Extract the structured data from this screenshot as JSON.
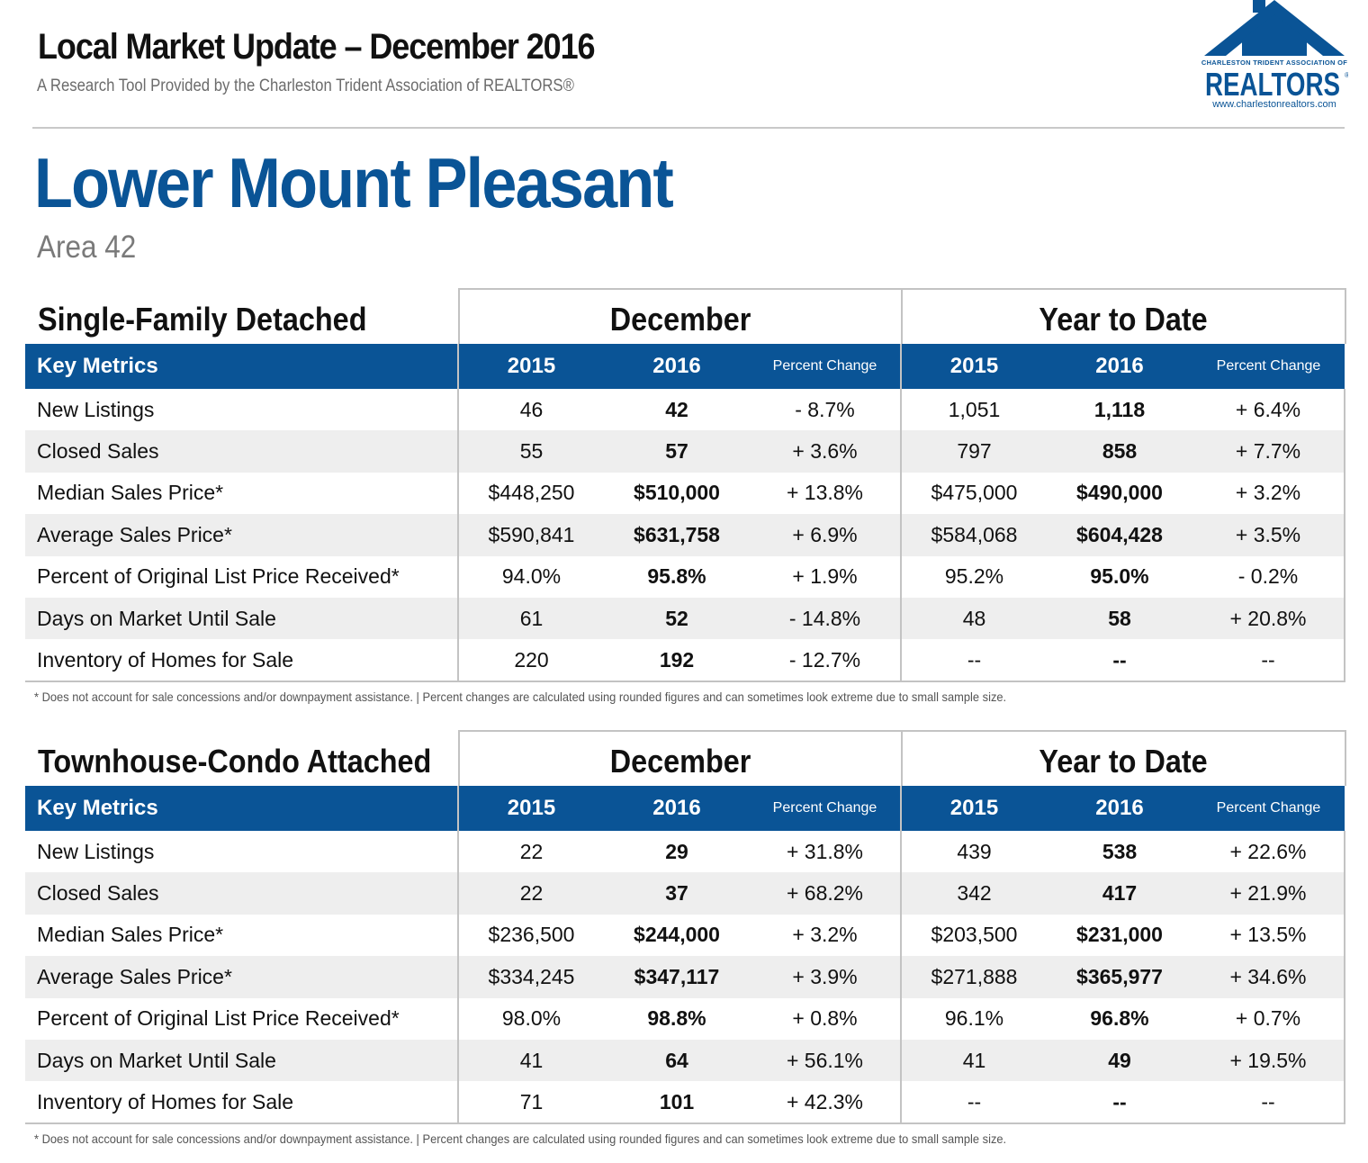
{
  "header": {
    "title": "Local Market Update – December 2016",
    "subtitle": "A Research Tool Provided by the Charleston Trident Association of REALTORS®"
  },
  "logo": {
    "top_text": "CHARLESTON TRIDENT ASSOCIATION OF",
    "word": "REALTORS",
    "reg": "®",
    "url": "www.charlestonrealtors.com",
    "color": "#0a5496"
  },
  "area": {
    "name": "Lower Mount Pleasant",
    "code": "Area 42"
  },
  "columns": {
    "key_metrics": "Key Metrics",
    "group1": "December",
    "group2": "Year to Date",
    "y1": "2015",
    "y2": "2016",
    "pct": "Percent Change"
  },
  "footnote": "* Does not account for sale concessions and/or downpayment assistance.  |  Percent changes are calculated using rounded figures and can sometimes look extreme due to small sample size.",
  "sections": [
    {
      "title": "Single-Family Detached",
      "rows": [
        {
          "metric": "New Listings",
          "m2015": "46",
          "m2016": "42",
          "mpct": "- 8.7%",
          "y2015": "1,051",
          "y2016": "1,118",
          "ypct": "+ 6.4%"
        },
        {
          "metric": "Closed Sales",
          "m2015": "55",
          "m2016": "57",
          "mpct": "+ 3.6%",
          "y2015": "797",
          "y2016": "858",
          "ypct": "+ 7.7%"
        },
        {
          "metric": "Median Sales Price*",
          "m2015": "$448,250",
          "m2016": "$510,000",
          "mpct": "+ 13.8%",
          "y2015": "$475,000",
          "y2016": "$490,000",
          "ypct": "+ 3.2%"
        },
        {
          "metric": "Average Sales Price*",
          "m2015": "$590,841",
          "m2016": "$631,758",
          "mpct": "+ 6.9%",
          "y2015": "$584,068",
          "y2016": "$604,428",
          "ypct": "+ 3.5%"
        },
        {
          "metric": "Percent of Original List Price Received*",
          "m2015": "94.0%",
          "m2016": "95.8%",
          "mpct": "+ 1.9%",
          "y2015": "95.2%",
          "y2016": "95.0%",
          "ypct": "- 0.2%"
        },
        {
          "metric": "Days on Market Until Sale",
          "m2015": "61",
          "m2016": "52",
          "mpct": "- 14.8%",
          "y2015": "48",
          "y2016": "58",
          "ypct": "+ 20.8%"
        },
        {
          "metric": "Inventory of Homes for Sale",
          "m2015": "220",
          "m2016": "192",
          "mpct": "- 12.7%",
          "y2015": "--",
          "y2016": "--",
          "ypct": "--"
        }
      ]
    },
    {
      "title": "Townhouse-Condo Attached",
      "rows": [
        {
          "metric": "New Listings",
          "m2015": "22",
          "m2016": "29",
          "mpct": "+ 31.8%",
          "y2015": "439",
          "y2016": "538",
          "ypct": "+ 22.6%"
        },
        {
          "metric": "Closed Sales",
          "m2015": "22",
          "m2016": "37",
          "mpct": "+ 68.2%",
          "y2015": "342",
          "y2016": "417",
          "ypct": "+ 21.9%"
        },
        {
          "metric": "Median Sales Price*",
          "m2015": "$236,500",
          "m2016": "$244,000",
          "mpct": "+ 3.2%",
          "y2015": "$203,500",
          "y2016": "$231,000",
          "ypct": "+ 13.5%"
        },
        {
          "metric": "Average Sales Price*",
          "m2015": "$334,245",
          "m2016": "$347,117",
          "mpct": "+ 3.9%",
          "y2015": "$271,888",
          "y2016": "$365,977",
          "ypct": "+ 34.6%"
        },
        {
          "metric": "Percent of Original List Price Received*",
          "m2015": "98.0%",
          "m2016": "98.8%",
          "mpct": "+ 0.8%",
          "y2015": "96.1%",
          "y2016": "96.8%",
          "ypct": "+ 0.7%"
        },
        {
          "metric": "Days on Market Until Sale",
          "m2015": "41",
          "m2016": "64",
          "mpct": "+ 56.1%",
          "y2015": "41",
          "y2016": "49",
          "ypct": "+ 19.5%"
        },
        {
          "metric": "Inventory of Homes for Sale",
          "m2015": "71",
          "m2016": "101",
          "mpct": "+ 42.3%",
          "y2015": "--",
          "y2016": "--",
          "ypct": "--"
        }
      ]
    }
  ]
}
